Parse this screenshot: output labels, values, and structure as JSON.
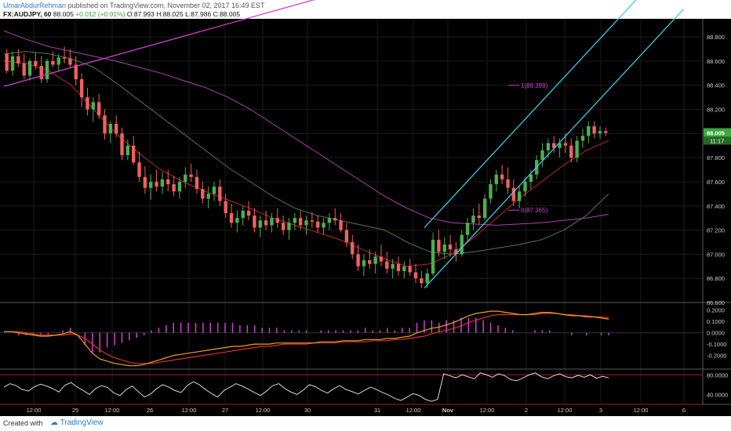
{
  "header": {
    "author": "UmarAbdurRehman",
    "published": "published on TradingView.com, November 02, 2017 16:49 EST",
    "symbol": "FX:AUDJPY, 60",
    "last": "88.005",
    "change": "+0.012 (+0.01%)",
    "open": "O:87.993",
    "high": "H:88.025",
    "low": "L:87.986",
    "close": "C:88.005"
  },
  "footer": {
    "created_with": "Created with",
    "brand": "TradingView"
  },
  "colors": {
    "up": "#4caf50",
    "down": "#f06060",
    "channel": "#40c8e8",
    "trend": "#d040d0",
    "ma_fast": "#c02828",
    "ma_mid": "#4a7a4a",
    "ma_slow": "#b040b0",
    "macd": "#f0a020",
    "signal": "#e03030",
    "hist": "#d040d0",
    "rsi": "#f0f0f0"
  },
  "chart_data": [
    {
      "type": "candlestick",
      "symbol": "FX:AUDJPY",
      "interval": "60",
      "ylim": [
        86.6,
        88.95
      ],
      "y_ticks": [
        "88.800",
        "88.600",
        "88.400",
        "88.200",
        "88.000",
        "87.800",
        "87.600",
        "87.400",
        "87.200",
        "87.000",
        "86.800",
        "86.600"
      ],
      "x_ticks": [
        "12:00",
        "25",
        "12:00",
        "26",
        "12:00",
        "27",
        "12:00",
        "30",
        "31",
        "12:00",
        "Nov",
        "12:00",
        "2",
        "12:00",
        "3",
        "12:00",
        "6"
      ],
      "last_price_label": "88.005",
      "countdown_label": "11:17",
      "annotations": [
        "1(88.399)",
        "0(87.365)"
      ],
      "candles": [
        [
          88.66,
          88.7,
          88.5,
          88.52
        ],
        [
          88.52,
          88.68,
          88.48,
          88.64
        ],
        [
          88.64,
          88.7,
          88.55,
          88.58
        ],
        [
          88.58,
          88.66,
          88.45,
          88.48
        ],
        [
          88.48,
          88.62,
          88.44,
          88.6
        ],
        [
          88.6,
          88.67,
          88.53,
          88.56
        ],
        [
          88.56,
          88.64,
          88.42,
          88.45
        ],
        [
          88.45,
          88.62,
          88.42,
          88.6
        ],
        [
          88.6,
          88.68,
          88.55,
          88.57
        ],
        [
          88.57,
          88.66,
          88.52,
          88.63
        ],
        [
          88.63,
          88.72,
          88.58,
          88.62
        ],
        [
          88.62,
          88.7,
          88.55,
          88.57
        ],
        [
          88.57,
          88.64,
          88.4,
          88.45
        ],
        [
          88.45,
          88.5,
          88.22,
          88.3
        ],
        [
          88.3,
          88.38,
          88.15,
          88.2
        ],
        [
          88.2,
          88.3,
          88.1,
          88.26
        ],
        [
          88.26,
          88.33,
          88.12,
          88.15
        ],
        [
          88.15,
          88.2,
          87.95,
          88.0
        ],
        [
          88.0,
          88.1,
          87.92,
          88.08
        ],
        [
          88.08,
          88.15,
          87.97,
          88.0
        ],
        [
          88.0,
          88.05,
          87.78,
          87.82
        ],
        [
          87.82,
          87.95,
          87.78,
          87.9
        ],
        [
          87.9,
          87.98,
          87.74,
          87.76
        ],
        [
          87.76,
          87.85,
          87.6,
          87.64
        ],
        [
          87.64,
          87.73,
          87.5,
          87.55
        ],
        [
          87.55,
          87.66,
          87.45,
          87.6
        ],
        [
          87.6,
          87.7,
          87.52,
          87.56
        ],
        [
          87.56,
          87.68,
          87.5,
          87.62
        ],
        [
          87.62,
          87.7,
          87.52,
          87.58
        ],
        [
          87.58,
          87.65,
          87.48,
          87.52
        ],
        [
          87.52,
          87.64,
          87.46,
          87.6
        ],
        [
          87.6,
          87.72,
          87.55,
          87.66
        ],
        [
          87.66,
          87.75,
          87.6,
          87.64
        ],
        [
          87.64,
          87.7,
          87.5,
          87.54
        ],
        [
          87.54,
          87.6,
          87.42,
          87.46
        ],
        [
          87.46,
          87.56,
          87.38,
          87.5
        ],
        [
          87.5,
          87.6,
          87.44,
          87.56
        ],
        [
          87.56,
          87.62,
          87.4,
          87.44
        ],
        [
          87.44,
          87.5,
          87.3,
          87.34
        ],
        [
          87.34,
          87.42,
          87.22,
          87.26
        ],
        [
          87.26,
          87.36,
          87.18,
          87.3
        ],
        [
          87.3,
          87.4,
          87.24,
          87.36
        ],
        [
          87.36,
          87.44,
          87.28,
          87.32
        ],
        [
          87.32,
          87.38,
          87.18,
          87.22
        ],
        [
          87.22,
          87.32,
          87.14,
          87.28
        ],
        [
          87.28,
          87.36,
          87.2,
          87.24
        ],
        [
          87.24,
          87.34,
          87.18,
          87.3
        ],
        [
          87.3,
          87.38,
          87.22,
          87.26
        ],
        [
          87.26,
          87.32,
          87.16,
          87.2
        ],
        [
          87.2,
          87.3,
          87.12,
          87.26
        ],
        [
          87.26,
          87.34,
          87.2,
          87.3
        ],
        [
          87.3,
          87.36,
          87.2,
          87.24
        ],
        [
          87.24,
          87.32,
          87.16,
          87.28
        ],
        [
          87.28,
          87.35,
          87.22,
          87.27
        ],
        [
          87.27,
          87.32,
          87.18,
          87.22
        ],
        [
          87.22,
          87.3,
          87.16,
          87.26
        ],
        [
          87.26,
          87.34,
          87.2,
          87.3
        ],
        [
          87.3,
          87.38,
          87.24,
          87.28
        ],
        [
          87.28,
          87.34,
          87.18,
          87.2
        ],
        [
          87.2,
          87.26,
          87.06,
          87.1
        ],
        [
          87.1,
          87.16,
          86.96,
          87.0
        ],
        [
          87.0,
          87.08,
          86.86,
          86.9
        ],
        [
          86.9,
          87.0,
          86.82,
          86.95
        ],
        [
          86.95,
          87.04,
          86.88,
          86.92
        ],
        [
          86.92,
          87.02,
          86.84,
          86.98
        ],
        [
          86.98,
          87.08,
          86.9,
          86.94
        ],
        [
          86.94,
          87.02,
          86.84,
          86.88
        ],
        [
          86.88,
          86.96,
          86.8,
          86.92
        ],
        [
          86.92,
          86.98,
          86.82,
          86.86
        ],
        [
          86.86,
          86.94,
          86.8,
          86.9
        ],
        [
          86.9,
          86.96,
          86.82,
          86.85
        ],
        [
          86.85,
          86.92,
          86.76,
          86.8
        ],
        [
          86.8,
          86.86,
          86.72,
          86.76
        ],
        [
          86.76,
          86.88,
          86.72,
          86.84
        ],
        [
          86.84,
          87.18,
          86.82,
          87.12
        ],
        [
          87.12,
          87.2,
          86.98,
          87.02
        ],
        [
          87.02,
          87.14,
          86.96,
          87.08
        ],
        [
          87.08,
          87.16,
          86.98,
          87.04
        ],
        [
          87.04,
          87.1,
          86.94,
          87.0
        ],
        [
          87.0,
          87.2,
          86.98,
          87.16
        ],
        [
          87.16,
          87.3,
          87.1,
          87.26
        ],
        [
          87.26,
          87.38,
          87.2,
          87.32
        ],
        [
          87.32,
          87.42,
          87.24,
          87.3
        ],
        [
          87.3,
          87.5,
          87.28,
          87.46
        ],
        [
          87.46,
          87.62,
          87.42,
          87.58
        ],
        [
          87.58,
          87.7,
          87.52,
          87.66
        ],
        [
          87.66,
          87.74,
          87.58,
          87.62
        ],
        [
          87.62,
          87.72,
          87.5,
          87.55
        ],
        [
          87.55,
          87.62,
          87.4,
          87.44
        ],
        [
          87.44,
          87.56,
          87.38,
          87.52
        ],
        [
          87.52,
          87.64,
          87.48,
          87.6
        ],
        [
          87.6,
          87.7,
          87.54,
          87.66
        ],
        [
          87.66,
          87.82,
          87.62,
          87.78
        ],
        [
          87.78,
          87.92,
          87.72,
          87.86
        ],
        [
          87.86,
          87.96,
          87.8,
          87.92
        ],
        [
          87.92,
          87.98,
          87.84,
          87.88
        ],
        [
          87.88,
          87.96,
          87.8,
          87.92
        ],
        [
          87.92,
          88.0,
          87.84,
          87.9
        ],
        [
          87.9,
          87.96,
          87.76,
          87.8
        ],
        [
          87.8,
          87.98,
          87.76,
          87.94
        ],
        [
          87.94,
          88.04,
          87.88,
          87.98
        ],
        [
          87.98,
          88.1,
          87.92,
          88.06
        ],
        [
          88.06,
          88.1,
          87.96,
          88.0
        ],
        [
          88.0,
          88.06,
          87.96,
          88.02
        ],
        [
          88.02,
          88.05,
          87.98,
          88.005
        ]
      ],
      "moving_averages": [
        {
          "values": [
            88.6,
            88.58,
            88.52,
            88.4,
            88.2,
            88.0,
            87.84,
            87.7,
            87.6,
            87.52,
            87.45,
            87.38,
            87.3,
            87.24,
            87.18,
            87.12,
            87.04,
            86.96,
            86.9,
            86.92,
            87.0,
            87.14,
            87.3,
            87.46,
            87.6,
            87.74,
            87.86,
            87.94
          ]
        },
        {
          "values": [
            88.66,
            88.68,
            88.66,
            88.62,
            88.55,
            88.42,
            88.28,
            88.14,
            88.0,
            87.86,
            87.72,
            87.6,
            87.48,
            87.38,
            87.32,
            87.28,
            87.24,
            87.2,
            87.1,
            87.02,
            87.0,
            87.02,
            87.05,
            87.08,
            87.12,
            87.2,
            87.32,
            87.5
          ]
        },
        {
          "values": [
            88.85,
            88.78,
            88.72,
            88.68,
            88.64,
            88.6,
            88.55,
            88.5,
            88.44,
            88.38,
            88.3,
            88.2,
            88.08,
            87.96,
            87.84,
            87.72,
            87.6,
            87.48,
            87.38,
            87.3,
            87.26,
            87.25,
            87.24,
            87.25,
            87.26,
            87.28,
            87.3,
            87.33
          ]
        }
      ],
      "channel_lines": [
        {
          "from": [
            73,
            86.72
          ],
          "to": [
            118,
            89.03
          ]
        },
        {
          "from": [
            73,
            87.22
          ],
          "to": [
            118,
            89.53
          ]
        },
        {
          "from": [
            0,
            88.39
          ],
          "to": [
            60,
            89.19
          ]
        }
      ]
    },
    {
      "type": "line",
      "name": "MACD",
      "ylim": [
        -0.32,
        0.26
      ],
      "y_ticks": [
        "0.2000",
        "0.1000",
        "0.0000",
        "-0.1000",
        "-0.2000"
      ],
      "macd": [
        0.01,
        0.01,
        0.0,
        -0.01,
        -0.02,
        -0.03,
        -0.03,
        -0.02,
        -0.01,
        0.01,
        -0.02,
        -0.1,
        -0.18,
        -0.23,
        -0.25,
        -0.27,
        -0.28,
        -0.29,
        -0.29,
        -0.28,
        -0.26,
        -0.24,
        -0.22,
        -0.2,
        -0.19,
        -0.18,
        -0.17,
        -0.16,
        -0.15,
        -0.14,
        -0.13,
        -0.12,
        -0.12,
        -0.11,
        -0.1,
        -0.1,
        -0.1,
        -0.09,
        -0.09,
        -0.09,
        -0.09,
        -0.09,
        -0.09,
        -0.08,
        -0.08,
        -0.08,
        -0.07,
        -0.07,
        -0.07,
        -0.06,
        -0.06,
        -0.06,
        -0.05,
        -0.05,
        -0.04,
        -0.03,
        0.0,
        0.02,
        0.04,
        0.05,
        0.07,
        0.09,
        0.12,
        0.15,
        0.17,
        0.18,
        0.19,
        0.19,
        0.18,
        0.17,
        0.16,
        0.16,
        0.17,
        0.18,
        0.18,
        0.17,
        0.16,
        0.15,
        0.15,
        0.14,
        0.14,
        0.13,
        0.12
      ],
      "signal": [
        0.01,
        0.01,
        0.01,
        0.0,
        -0.01,
        -0.02,
        -0.02,
        -0.02,
        -0.02,
        -0.01,
        -0.02,
        -0.05,
        -0.1,
        -0.15,
        -0.19,
        -0.22,
        -0.24,
        -0.26,
        -0.27,
        -0.27,
        -0.27,
        -0.26,
        -0.25,
        -0.24,
        -0.23,
        -0.22,
        -0.21,
        -0.2,
        -0.19,
        -0.18,
        -0.17,
        -0.16,
        -0.15,
        -0.14,
        -0.13,
        -0.12,
        -0.12,
        -0.11,
        -0.1,
        -0.1,
        -0.1,
        -0.1,
        -0.09,
        -0.09,
        -0.09,
        -0.09,
        -0.08,
        -0.08,
        -0.08,
        -0.08,
        -0.07,
        -0.07,
        -0.07,
        -0.06,
        -0.06,
        -0.05,
        -0.04,
        -0.03,
        -0.01,
        0.01,
        0.02,
        0.04,
        0.06,
        0.09,
        0.11,
        0.13,
        0.15,
        0.16,
        0.16,
        0.16,
        0.16,
        0.16,
        0.16,
        0.17,
        0.17,
        0.17,
        0.16,
        0.16,
        0.15,
        0.15,
        0.14,
        0.14,
        0.13
      ]
    },
    {
      "type": "line",
      "name": "RSI",
      "ylim": [
        20,
        90
      ],
      "y_ticks": [
        "80.0000",
        "40.0000"
      ],
      "levels": [
        80,
        20
      ],
      "values": [
        55,
        62,
        58,
        50,
        47,
        56,
        61,
        57,
        52,
        45,
        59,
        64,
        55,
        48,
        40,
        52,
        58,
        54,
        43,
        38,
        50,
        57,
        46,
        35,
        41,
        52,
        60,
        55,
        48,
        44,
        58,
        66,
        60,
        50,
        42,
        35,
        48,
        55,
        62,
        57,
        51,
        44,
        38,
        47,
        58,
        62,
        52,
        45,
        40,
        49,
        60,
        56,
        48,
        43,
        52,
        58,
        50,
        46,
        41,
        48,
        55,
        50,
        44,
        39,
        32,
        28,
        35,
        42,
        38,
        30,
        26,
        30,
        82,
        78,
        74,
        80,
        76,
        72,
        84,
        80,
        75,
        82,
        78,
        70,
        68,
        74,
        80,
        84,
        76,
        72,
        78,
        82,
        76,
        74,
        79,
        75,
        80,
        73,
        77,
        74
      ]
    }
  ]
}
